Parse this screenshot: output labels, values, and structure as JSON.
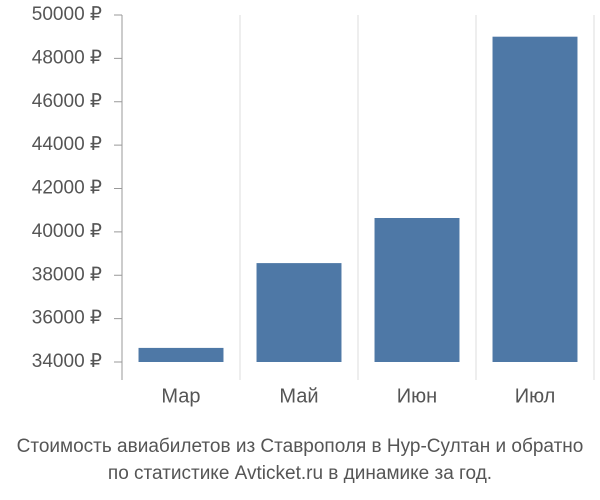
{
  "chart_data": {
    "type": "bar",
    "title": "Стоимость авиабилетов из Ставрополя в Нур-Султан и обратно",
    "subtitle": "по статистике Avticket.ru в динамике за год.",
    "categories": [
      "Мар",
      "Май",
      "Июн",
      "Июл"
    ],
    "values": [
      34650,
      38560,
      40640,
      49000
    ],
    "color": "#4e78a6",
    "ylim": [
      34000,
      50000
    ],
    "yticks": [
      {
        "value": 34000,
        "label": "34000 ₽"
      },
      {
        "value": 36000,
        "label": "36000 ₽"
      },
      {
        "value": 38000,
        "label": "38000 ₽"
      },
      {
        "value": 40000,
        "label": "40000 ₽"
      },
      {
        "value": 42000,
        "label": "42000 ₽"
      },
      {
        "value": 44000,
        "label": "44000 ₽"
      },
      {
        "value": 46000,
        "label": "46000 ₽"
      },
      {
        "value": 48000,
        "label": "48000 ₽"
      },
      {
        "value": 50000,
        "label": "50000 ₽"
      }
    ],
    "grid": true
  }
}
